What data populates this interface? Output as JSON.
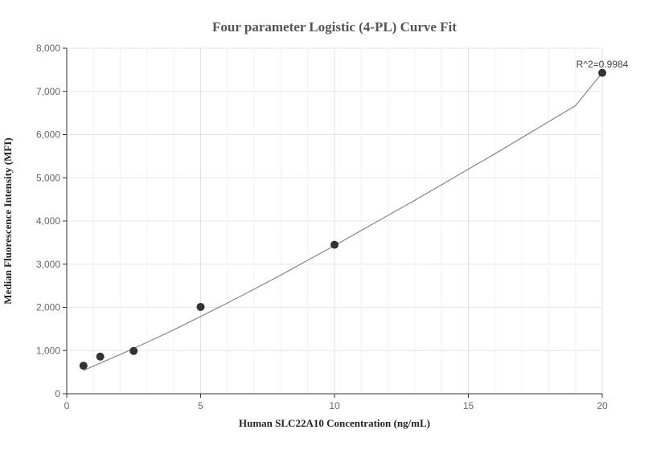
{
  "chart_data": {
    "type": "scatter",
    "title": "Four parameter Logistic (4-PL) Curve Fit",
    "xlabel": "Human SLC22A10 Concentration (ng/mL)",
    "ylabel": "Median Fluorescence Intensity (MFI)",
    "xlim": [
      0,
      20
    ],
    "ylim": [
      0,
      8000
    ],
    "x_ticks": [
      0,
      5,
      10,
      15,
      20
    ],
    "y_ticks": [
      0,
      1000,
      2000,
      3000,
      4000,
      5000,
      6000,
      7000,
      8000
    ],
    "x_tick_labels": [
      "0",
      "5",
      "10",
      "15",
      "20"
    ],
    "y_tick_labels": [
      "0",
      "1,000",
      "2,000",
      "3,000",
      "4,000",
      "5,000",
      "6,000",
      "7,000",
      "8,000"
    ],
    "grid": true,
    "points": [
      {
        "x": 0.625,
        "y": 650
      },
      {
        "x": 1.25,
        "y": 860
      },
      {
        "x": 2.5,
        "y": 990
      },
      {
        "x": 5,
        "y": 2010
      },
      {
        "x": 10,
        "y": 3450
      },
      {
        "x": 20,
        "y": 7430
      }
    ],
    "fit_curve": {
      "x": [
        0.625,
        1,
        2,
        3,
        4,
        5,
        6,
        7,
        8,
        9,
        10,
        11,
        12,
        13,
        14,
        15,
        16,
        17,
        18,
        19,
        20
      ],
      "y": [
        540,
        640,
        910,
        1190,
        1480,
        1790,
        2100,
        2420,
        2750,
        3090,
        3430,
        3780,
        4130,
        4480,
        4840,
        5200,
        5560,
        5930,
        6300,
        6670,
        7430
      ]
    },
    "annotation": "R^2=0.9984",
    "colors": {
      "points": "#333333",
      "curve": "#888888",
      "grid": "#e6e6e6",
      "axis": "#333333"
    }
  }
}
